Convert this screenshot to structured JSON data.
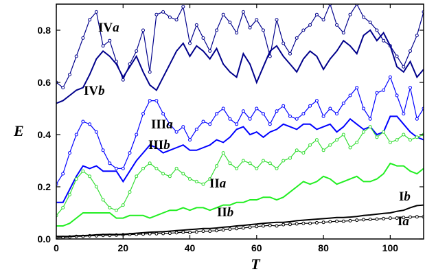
{
  "chart_data": {
    "type": "line",
    "xlabel": "T",
    "ylabel": "E",
    "xlim": [
      0,
      110
    ],
    "ylim": [
      0,
      0.9
    ],
    "xticks": [
      0,
      20,
      40,
      60,
      80,
      100
    ],
    "yticks": [
      0.0,
      0.2,
      0.4,
      0.6,
      0.8
    ],
    "xtick_labels": [
      "0",
      "20",
      "40",
      "60",
      "80",
      "100"
    ],
    "ytick_labels": [
      "0.0",
      "0.2",
      "0.4",
      "0.6",
      "0.8"
    ],
    "grid": false,
    "legend": "none",
    "series": [
      {
        "name": "IVa",
        "label_main": "IV",
        "label_italic": "a",
        "color": "#00008b",
        "style": "line-markers",
        "x": [
          0,
          2,
          4,
          6,
          8,
          10,
          12,
          14,
          16,
          18,
          20,
          22,
          24,
          26,
          28,
          30,
          32,
          34,
          36,
          38,
          40,
          42,
          44,
          46,
          48,
          50,
          52,
          54,
          56,
          58,
          60,
          62,
          64,
          66,
          68,
          70,
          72,
          74,
          76,
          78,
          80,
          82,
          84,
          86,
          88,
          90,
          92,
          94,
          96,
          98,
          100,
          102,
          104,
          106,
          108,
          110
        ],
        "y": [
          0.6,
          0.58,
          0.63,
          0.7,
          0.77,
          0.84,
          0.87,
          0.74,
          0.76,
          0.68,
          0.61,
          0.67,
          0.72,
          0.8,
          0.64,
          0.86,
          0.87,
          0.85,
          0.84,
          0.89,
          0.75,
          0.82,
          0.77,
          0.72,
          0.8,
          0.86,
          0.83,
          0.79,
          0.87,
          0.81,
          0.84,
          0.8,
          0.7,
          0.84,
          0.75,
          0.71,
          0.77,
          0.8,
          0.82,
          0.86,
          0.84,
          0.9,
          0.82,
          0.79,
          0.86,
          0.9,
          0.85,
          0.83,
          0.8,
          0.76,
          0.74,
          0.7,
          0.66,
          0.72,
          0.78,
          0.87
        ]
      },
      {
        "name": "IVb",
        "label_main": "IV",
        "label_italic": "b",
        "color": "#00008b",
        "style": "line",
        "x": [
          0,
          2,
          4,
          6,
          8,
          10,
          12,
          14,
          16,
          18,
          20,
          22,
          24,
          26,
          28,
          30,
          32,
          34,
          36,
          38,
          40,
          42,
          44,
          46,
          48,
          50,
          52,
          54,
          56,
          58,
          60,
          62,
          64,
          66,
          68,
          70,
          72,
          74,
          76,
          78,
          80,
          82,
          84,
          86,
          88,
          90,
          92,
          94,
          96,
          98,
          100,
          102,
          104,
          106,
          108,
          110
        ],
        "y": [
          0.52,
          0.53,
          0.55,
          0.57,
          0.58,
          0.63,
          0.69,
          0.72,
          0.7,
          0.67,
          0.62,
          0.66,
          0.7,
          0.64,
          0.59,
          0.57,
          0.62,
          0.67,
          0.72,
          0.75,
          0.7,
          0.74,
          0.72,
          0.69,
          0.73,
          0.67,
          0.64,
          0.62,
          0.71,
          0.67,
          0.6,
          0.66,
          0.72,
          0.74,
          0.7,
          0.67,
          0.64,
          0.69,
          0.72,
          0.7,
          0.65,
          0.69,
          0.72,
          0.76,
          0.74,
          0.71,
          0.78,
          0.8,
          0.76,
          0.79,
          0.74,
          0.66,
          0.64,
          0.68,
          0.62,
          0.65
        ]
      },
      {
        "name": "IIIa",
        "label_main": "III",
        "label_italic": "a",
        "color": "#0000ff",
        "style": "line-markers",
        "x": [
          0,
          2,
          4,
          6,
          8,
          10,
          12,
          14,
          16,
          18,
          20,
          22,
          24,
          26,
          28,
          30,
          32,
          34,
          36,
          38,
          40,
          42,
          44,
          46,
          48,
          50,
          52,
          54,
          56,
          58,
          60,
          62,
          64,
          66,
          68,
          70,
          72,
          74,
          76,
          78,
          80,
          82,
          84,
          86,
          88,
          90,
          92,
          94,
          96,
          98,
          100,
          102,
          104,
          106,
          108,
          110
        ],
        "y": [
          0.21,
          0.25,
          0.33,
          0.4,
          0.45,
          0.44,
          0.41,
          0.34,
          0.29,
          0.27,
          0.27,
          0.33,
          0.4,
          0.48,
          0.53,
          0.53,
          0.48,
          0.44,
          0.41,
          0.43,
          0.38,
          0.42,
          0.45,
          0.44,
          0.48,
          0.5,
          0.46,
          0.44,
          0.49,
          0.46,
          0.5,
          0.48,
          0.44,
          0.49,
          0.51,
          0.47,
          0.46,
          0.48,
          0.51,
          0.53,
          0.47,
          0.5,
          0.48,
          0.52,
          0.55,
          0.58,
          0.5,
          0.46,
          0.56,
          0.57,
          0.62,
          0.55,
          0.48,
          0.58,
          0.46,
          0.5
        ]
      },
      {
        "name": "IIIb",
        "label_main": "III",
        "label_italic": "b",
        "color": "#0000ff",
        "style": "line",
        "x": [
          0,
          2,
          4,
          6,
          8,
          10,
          12,
          14,
          16,
          18,
          20,
          22,
          24,
          26,
          28,
          30,
          32,
          34,
          36,
          38,
          40,
          42,
          44,
          46,
          48,
          50,
          52,
          54,
          56,
          58,
          60,
          62,
          64,
          66,
          68,
          70,
          72,
          74,
          76,
          78,
          80,
          82,
          84,
          86,
          88,
          90,
          92,
          94,
          96,
          98,
          100,
          102,
          104,
          106,
          108,
          110
        ],
        "y": [
          0.14,
          0.14,
          0.19,
          0.24,
          0.28,
          0.27,
          0.28,
          0.26,
          0.26,
          0.26,
          0.22,
          0.26,
          0.3,
          0.33,
          0.36,
          0.35,
          0.33,
          0.34,
          0.35,
          0.36,
          0.34,
          0.34,
          0.35,
          0.36,
          0.38,
          0.37,
          0.39,
          0.42,
          0.43,
          0.4,
          0.41,
          0.39,
          0.41,
          0.42,
          0.44,
          0.43,
          0.42,
          0.44,
          0.44,
          0.42,
          0.43,
          0.44,
          0.41,
          0.43,
          0.46,
          0.44,
          0.42,
          0.43,
          0.4,
          0.41,
          0.47,
          0.47,
          0.44,
          0.41,
          0.39,
          0.38
        ]
      },
      {
        "name": "IIa",
        "label_main": "II",
        "label_italic": "a",
        "color": "#33dd33",
        "style": "line-markers",
        "x": [
          0,
          2,
          4,
          6,
          8,
          10,
          12,
          14,
          16,
          18,
          20,
          22,
          24,
          26,
          28,
          30,
          32,
          34,
          36,
          38,
          40,
          42,
          44,
          46,
          48,
          50,
          52,
          54,
          56,
          58,
          60,
          62,
          64,
          66,
          68,
          70,
          72,
          74,
          76,
          78,
          80,
          82,
          84,
          86,
          88,
          90,
          92,
          94,
          96,
          98,
          100,
          102,
          104,
          106,
          108,
          110
        ],
        "y": [
          0.09,
          0.12,
          0.17,
          0.23,
          0.26,
          0.24,
          0.2,
          0.15,
          0.12,
          0.11,
          0.13,
          0.18,
          0.24,
          0.27,
          0.29,
          0.27,
          0.25,
          0.24,
          0.27,
          0.25,
          0.23,
          0.22,
          0.21,
          0.23,
          0.28,
          0.33,
          0.29,
          0.27,
          0.3,
          0.29,
          0.27,
          0.3,
          0.29,
          0.27,
          0.3,
          0.31,
          0.34,
          0.33,
          0.36,
          0.38,
          0.34,
          0.36,
          0.38,
          0.4,
          0.35,
          0.37,
          0.41,
          0.43,
          0.39,
          0.41,
          0.37,
          0.38,
          0.4,
          0.38,
          0.39,
          0.4
        ]
      },
      {
        "name": "IIb",
        "label_main": "II",
        "label_italic": "b",
        "color": "#22ee22",
        "style": "line",
        "x": [
          0,
          2,
          4,
          6,
          8,
          10,
          12,
          14,
          16,
          18,
          20,
          22,
          24,
          26,
          28,
          30,
          32,
          34,
          36,
          38,
          40,
          42,
          44,
          46,
          48,
          50,
          52,
          54,
          56,
          58,
          60,
          62,
          64,
          66,
          68,
          70,
          72,
          74,
          76,
          78,
          80,
          82,
          84,
          86,
          88,
          90,
          92,
          94,
          96,
          98,
          100,
          102,
          104,
          106,
          108,
          110
        ],
        "y": [
          0.05,
          0.05,
          0.06,
          0.08,
          0.1,
          0.1,
          0.1,
          0.1,
          0.1,
          0.08,
          0.08,
          0.09,
          0.09,
          0.09,
          0.08,
          0.09,
          0.1,
          0.11,
          0.11,
          0.12,
          0.11,
          0.12,
          0.12,
          0.11,
          0.12,
          0.13,
          0.13,
          0.14,
          0.14,
          0.15,
          0.15,
          0.16,
          0.16,
          0.15,
          0.16,
          0.18,
          0.2,
          0.22,
          0.21,
          0.22,
          0.24,
          0.23,
          0.21,
          0.22,
          0.23,
          0.24,
          0.22,
          0.22,
          0.23,
          0.25,
          0.29,
          0.28,
          0.28,
          0.26,
          0.25,
          0.27
        ]
      },
      {
        "name": "Ia",
        "label_main": "I",
        "label_italic": "a",
        "color": "#000000",
        "style": "line-markers",
        "x": [
          0,
          2,
          4,
          6,
          8,
          10,
          12,
          14,
          16,
          18,
          20,
          22,
          24,
          26,
          28,
          30,
          32,
          34,
          36,
          38,
          40,
          42,
          44,
          46,
          48,
          50,
          52,
          54,
          56,
          58,
          60,
          62,
          64,
          66,
          68,
          70,
          72,
          74,
          76,
          78,
          80,
          82,
          84,
          86,
          88,
          90,
          92,
          94,
          96,
          98,
          100,
          102,
          104,
          106,
          108,
          110
        ],
        "y": [
          0.005,
          0.006,
          0.008,
          0.01,
          0.01,
          0.012,
          0.012,
          0.014,
          0.014,
          0.015,
          0.016,
          0.017,
          0.018,
          0.019,
          0.02,
          0.02,
          0.021,
          0.022,
          0.024,
          0.026,
          0.025,
          0.027,
          0.03,
          0.03,
          0.032,
          0.035,
          0.038,
          0.04,
          0.042,
          0.045,
          0.048,
          0.05,
          0.052,
          0.05,
          0.055,
          0.056,
          0.058,
          0.06,
          0.06,
          0.062,
          0.064,
          0.066,
          0.068,
          0.068,
          0.07,
          0.072,
          0.074,
          0.075,
          0.076,
          0.078,
          0.08,
          0.08,
          0.082,
          0.084,
          0.085,
          0.085
        ]
      },
      {
        "name": "Ib",
        "label_main": "I",
        "label_italic": "b",
        "color": "#000000",
        "style": "line",
        "x": [
          0,
          2,
          4,
          6,
          8,
          10,
          12,
          14,
          16,
          18,
          20,
          22,
          24,
          26,
          28,
          30,
          32,
          34,
          36,
          38,
          40,
          42,
          44,
          46,
          48,
          50,
          52,
          54,
          56,
          58,
          60,
          62,
          64,
          66,
          68,
          70,
          72,
          74,
          76,
          78,
          80,
          82,
          84,
          86,
          88,
          90,
          92,
          94,
          96,
          98,
          100,
          102,
          104,
          106,
          108,
          110
        ],
        "y": [
          0.01,
          0.01,
          0.01,
          0.012,
          0.013,
          0.014,
          0.016,
          0.017,
          0.018,
          0.017,
          0.018,
          0.02,
          0.022,
          0.024,
          0.026,
          0.027,
          0.028,
          0.03,
          0.032,
          0.034,
          0.036,
          0.038,
          0.04,
          0.04,
          0.042,
          0.045,
          0.047,
          0.05,
          0.052,
          0.055,
          0.057,
          0.06,
          0.062,
          0.064,
          0.064,
          0.066,
          0.07,
          0.072,
          0.074,
          0.076,
          0.078,
          0.08,
          0.082,
          0.082,
          0.084,
          0.086,
          0.09,
          0.092,
          0.095,
          0.098,
          0.1,
          0.106,
          0.11,
          0.12,
          0.128,
          0.13
        ]
      }
    ]
  }
}
